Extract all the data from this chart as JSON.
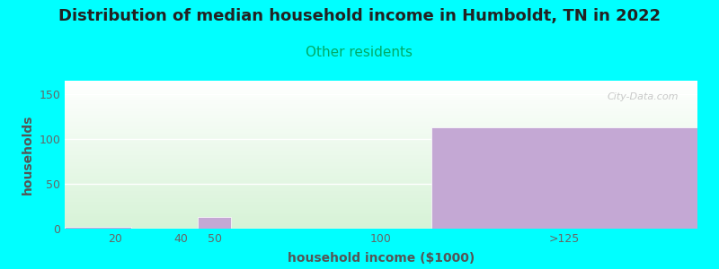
{
  "title": "Distribution of median household income in Humboldt, TN in 2022",
  "subtitle": "Other residents",
  "xlabel": "household income ($1000)",
  "ylabel": "households",
  "background_color": "#00FFFF",
  "bar_color": "#c4a8d4",
  "categories": [
    "20",
    "40",
    "50",
    "100",
    ">125"
  ],
  "values": [
    2,
    0,
    13,
    0,
    113
  ],
  "ylim": [
    0,
    165
  ],
  "yticks": [
    0,
    50,
    100,
    150
  ],
  "bar_lefts": [
    5,
    30,
    45,
    60,
    115
  ],
  "bar_widths": [
    20,
    10,
    10,
    50,
    80
  ],
  "xlim": [
    5,
    195
  ],
  "xtick_positions": [
    20,
    40,
    50,
    100,
    155
  ],
  "xtick_labels": [
    "20",
    "40",
    "50",
    "100",
    ">125"
  ],
  "title_fontsize": 13,
  "subtitle_fontsize": 11,
  "axis_label_fontsize": 10,
  "tick_fontsize": 9,
  "watermark": "City-Data.com",
  "subtitle_color": "#00aa66",
  "title_color": "#222222",
  "tick_color": "#666666",
  "label_color": "#555555"
}
